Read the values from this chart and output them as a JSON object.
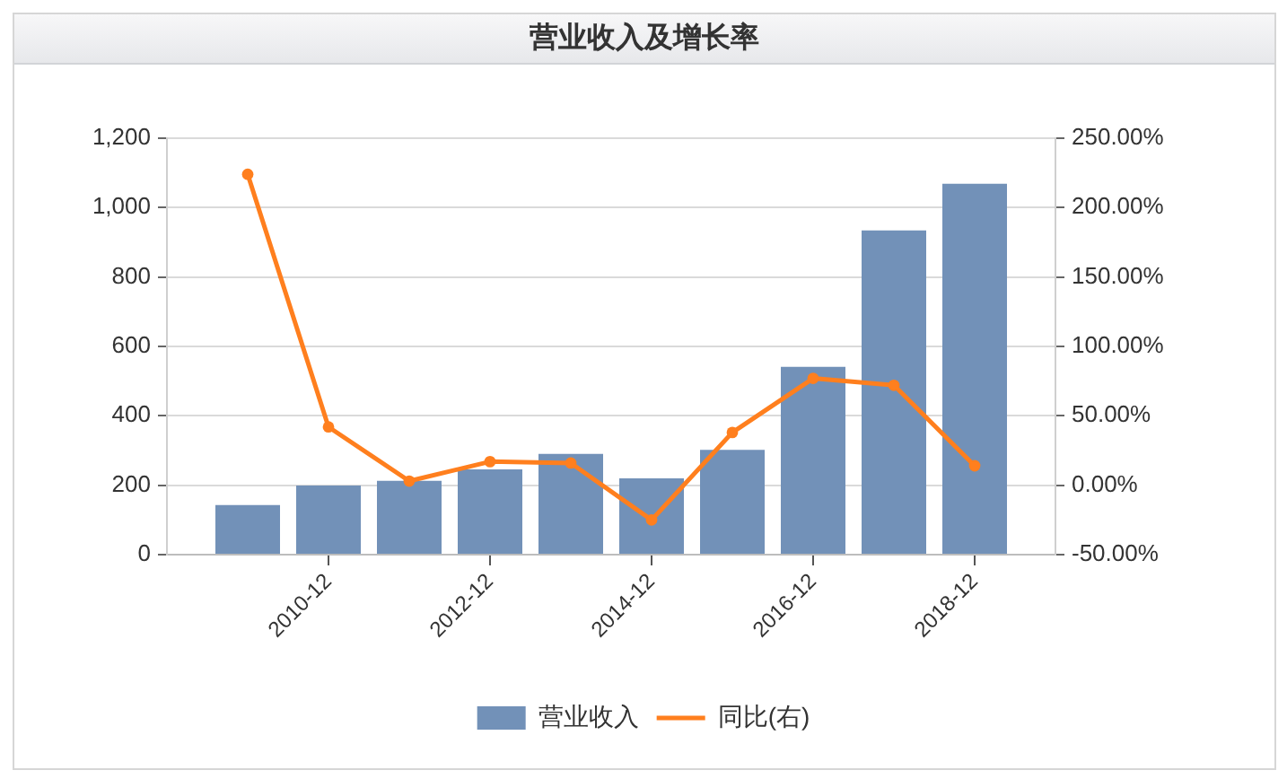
{
  "chart_data": {
    "type": "bar",
    "title": "营业收入及增长率",
    "categories": [
      null,
      "2010-12",
      null,
      "2012-12",
      null,
      "2014-12",
      null,
      "2016-12",
      null,
      "2018-12"
    ],
    "series": [
      {
        "name": "营业收入",
        "color": "#7291b8",
        "values": [
          143,
          199,
          213,
          246,
          290,
          220,
          302,
          541,
          934,
          1069
        ]
      },
      {
        "name": "同比(右)",
        "type": "line",
        "axis": "y2",
        "color": "#ff7f1e",
        "values": [
          224,
          42,
          3,
          17,
          16,
          -25,
          38,
          77,
          72,
          14
        ]
      }
    ],
    "ylim": [
      0,
      1200
    ],
    "yticks": [
      0,
      200,
      400,
      600,
      800,
      {
        "value": 1000,
        "label": "1,000"
      },
      {
        "value": 1200,
        "label": "1,200"
      }
    ],
    "y2lim": [
      -50,
      250
    ],
    "y2ticks": [
      {
        "value": -50,
        "label": "-50.00%"
      },
      {
        "value": 0,
        "label": "0.00%"
      },
      {
        "value": 50,
        "label": "50.00%"
      },
      {
        "value": 100,
        "label": "100.00%"
      },
      {
        "value": 150,
        "label": "150.00%"
      },
      {
        "value": 200,
        "label": "200.00%"
      },
      {
        "value": 250,
        "label": "250.00%"
      }
    ],
    "grid": "y",
    "legend": "bottom",
    "marker": "circle"
  }
}
